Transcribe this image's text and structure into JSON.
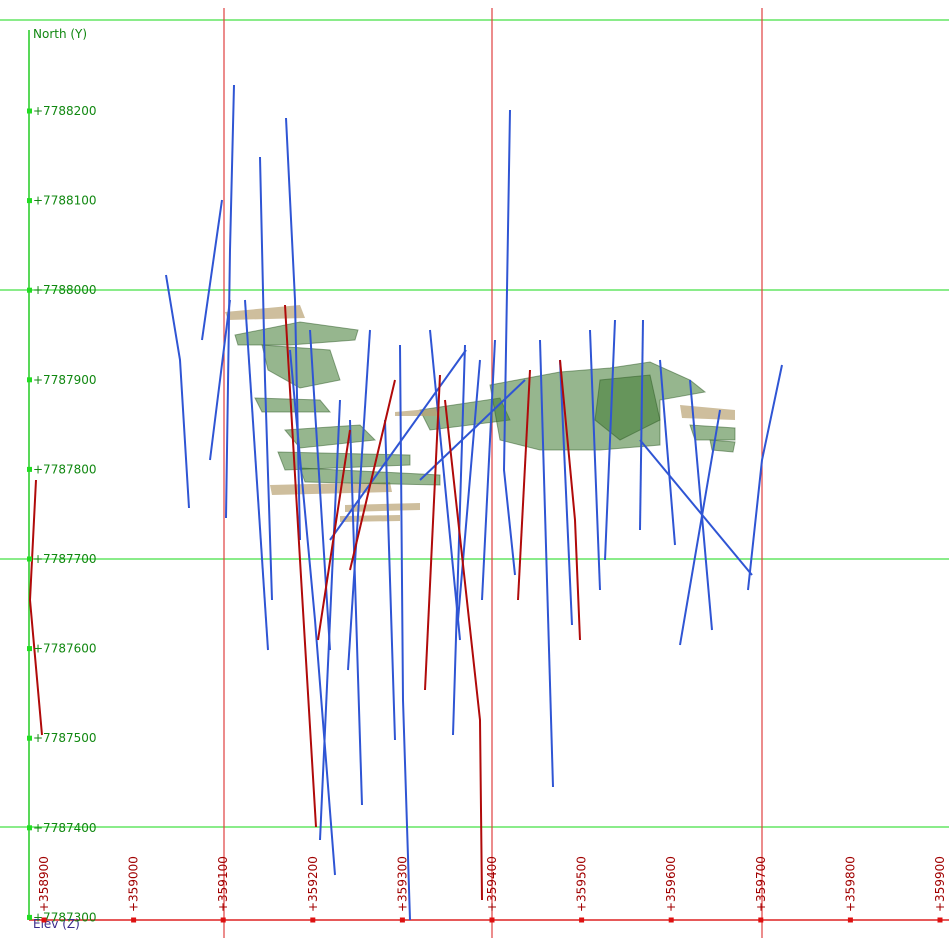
{
  "axes": {
    "north_title": "North (Y)",
    "elev_title": "Elev (Z)",
    "north_ticks": [
      "+7788200",
      "+7788100",
      "+7788000",
      "+7787900",
      "+7787800",
      "+7787700",
      "+7787600",
      "+7787500",
      "+7787400",
      "+7787300"
    ],
    "east_ticks": [
      "+358900",
      "+359000",
      "+359100",
      "+359200",
      "+359300",
      "+359400",
      "+359500",
      "+359600",
      "+359700",
      "+359800",
      "+359900"
    ]
  }
}
